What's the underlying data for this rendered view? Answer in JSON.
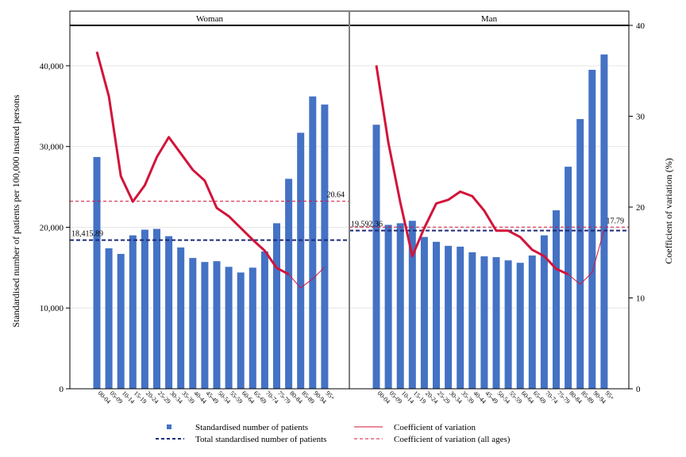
{
  "chart_data": {
    "type": "bar",
    "ylabel_left": "Standardised number of patients per 100,000 insured persons",
    "ylabel_right": "Coefficient of variation (%)",
    "ylim_left": [
      0,
      45000
    ],
    "ylim_right": [
      0,
      40
    ],
    "yticks_left": [
      "0",
      "10,000",
      "20,000",
      "30,000",
      "40,000"
    ],
    "yticks_right": [
      "0",
      "10",
      "20",
      "30",
      "40"
    ],
    "categories": [
      "00-04",
      "05-09",
      "10-14",
      "15-19",
      "20-24",
      "25-29",
      "30-34",
      "35-39",
      "40-44",
      "45-49",
      "50-54",
      "55-59",
      "60-64",
      "65-69",
      "70-74",
      "75-79",
      "80-84",
      "85-89",
      "90-94",
      "95+"
    ],
    "panels": [
      {
        "title": "Woman",
        "bars": [
          28700,
          17400,
          16700,
          19000,
          19700,
          19800,
          18900,
          17500,
          16200,
          15700,
          15800,
          15100,
          14400,
          15000,
          17000,
          20500,
          26000,
          31700,
          36200,
          35200
        ],
        "cv": [
          37.1,
          32.2,
          23.4,
          20.6,
          22.4,
          25.5,
          27.7,
          25.9,
          24.1,
          22.9,
          19.9,
          19.0,
          17.7,
          16.4,
          15.2,
          13.3,
          12.6,
          11.1,
          12.1,
          13.4
        ],
        "cv_thick_count": 17,
        "total_line": 18415.89,
        "total_label": "18,415.89",
        "cv_all": 20.64,
        "cv_all_label": "20.64"
      },
      {
        "title": "Man",
        "bars": [
          32700,
          20300,
          20500,
          20800,
          18800,
          18200,
          17700,
          17600,
          16900,
          16400,
          16300,
          15900,
          15600,
          16500,
          19000,
          22100,
          27500,
          33400,
          39500,
          41400
        ],
        "cv": [
          35.6,
          27.1,
          20.5,
          14.6,
          17.7,
          20.4,
          20.8,
          21.7,
          21.2,
          19.6,
          17.4,
          17.4,
          16.7,
          15.3,
          14.6,
          13.2,
          12.6,
          11.5,
          12.8,
          17.5
        ],
        "cv_thick_count": 17,
        "total_line": 19592.36,
        "total_label": "19,592.36",
        "cv_all": 17.79,
        "cv_all_label": "17.79"
      }
    ],
    "legend": [
      {
        "label": "Standardised number of patients",
        "kind": "square",
        "color": "#4472c4"
      },
      {
        "label": "Coefficient of variation",
        "kind": "solid",
        "color": "#d2143a"
      },
      {
        "label": "Total standardised number of patients",
        "kind": "dash",
        "color": "#1f2a7a"
      },
      {
        "label": "Coefficient of variation (all ages)",
        "kind": "dash",
        "color": "#d2143a"
      }
    ],
    "colors": {
      "bar": "#4472c4",
      "cv": "#d2143a",
      "total": "#1f2a7a",
      "grid": "#e6e6e6"
    },
    "grid": true
  }
}
